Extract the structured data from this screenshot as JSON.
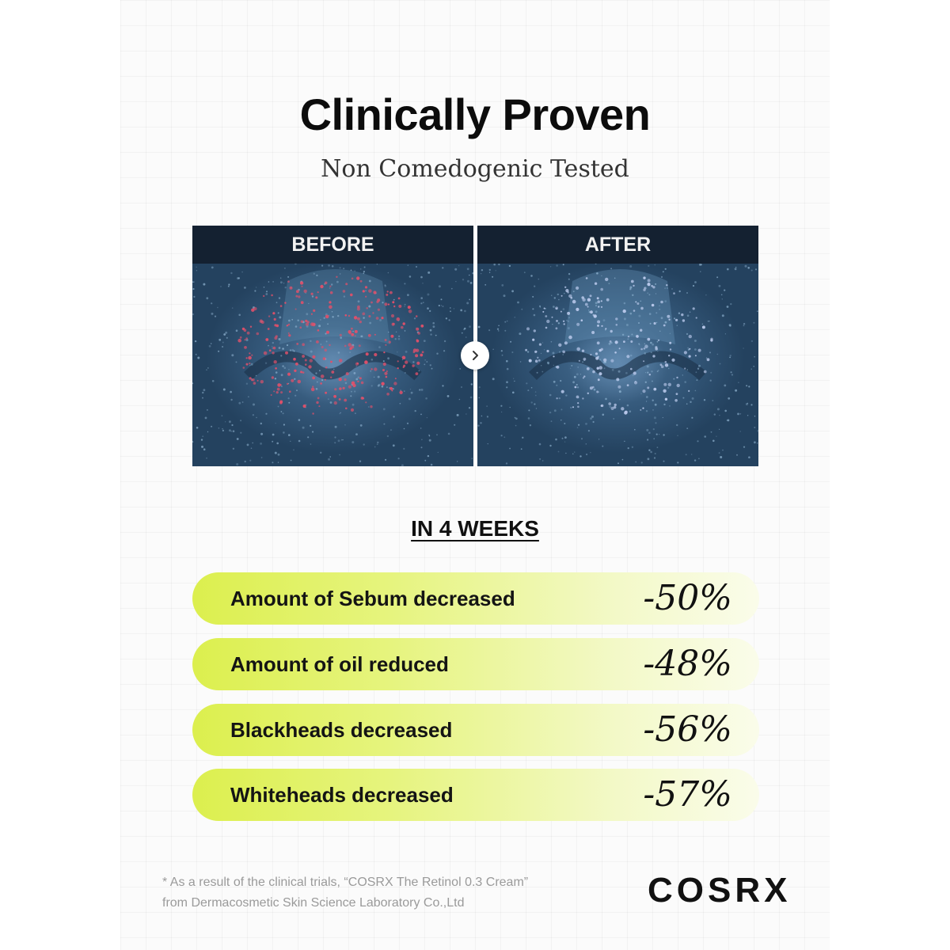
{
  "title": "Clinically Proven",
  "subtitle": "Non Comedogenic Tested",
  "comparison": {
    "before_label": "BEFORE",
    "after_label": "AFTER",
    "arrow_icon": "chevron-right-icon"
  },
  "period": "IN 4 WEEKS",
  "stats": [
    {
      "label": "Amount of Sebum decreased",
      "value": "-50%"
    },
    {
      "label": "Amount of oil reduced",
      "value": "-48%"
    },
    {
      "label": "Blackheads decreased",
      "value": "-56%"
    },
    {
      "label": "Whiteheads decreased",
      "value": "-57%"
    }
  ],
  "footnote": {
    "line1": "* As a result of the clinical trials, “COSRX The Retinol 0.3 Cream”",
    "line2": "from Dermacosmetic Skin Science Laboratory Co.,Ltd"
  },
  "brand": "COSRX",
  "colors": {
    "accent": "#dcef4e",
    "photo_bg": "#34587a",
    "dots_before": "#e0506a",
    "dots_after": "#b8c8ea"
  }
}
